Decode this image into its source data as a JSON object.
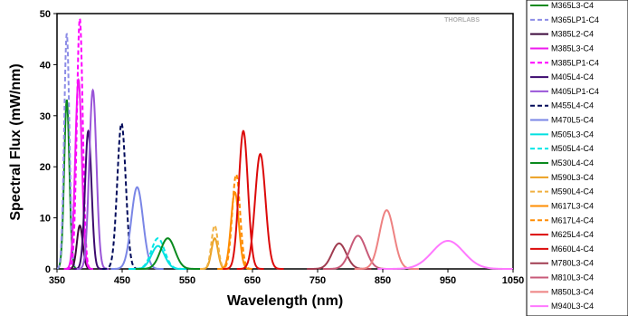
{
  "chart_data": {
    "type": "line",
    "title": "",
    "xlabel": "Wavelength (nm)",
    "ylabel": "Spectral Flux (mW/nm)",
    "xlim": [
      350,
      1050
    ],
    "ylim": [
      0,
      50
    ],
    "xticks": [
      350,
      450,
      550,
      650,
      750,
      850,
      950,
      1050
    ],
    "yticks": [
      0,
      10,
      20,
      30,
      40,
      50
    ],
    "grid": false,
    "legend_position": "right-outside",
    "watermark": "THORLABS",
    "series": [
      {
        "name": "M365L3-C4",
        "color": "#0a8a1e",
        "dash": "solid",
        "peak": 365,
        "height": 33,
        "width": 4
      },
      {
        "name": "M365LP1-C4",
        "color": "#8c8ce6",
        "dash": "dashed",
        "peak": 365,
        "height": 46,
        "width": 4
      },
      {
        "name": "M385L2-C4",
        "color": "#3c0a3c",
        "dash": "solid",
        "peak": 385,
        "height": 8.5,
        "width": 4.5
      },
      {
        "name": "M385L3-C4",
        "color": "#ee1aee",
        "dash": "solid",
        "peak": 383,
        "height": 37,
        "width": 5
      },
      {
        "name": "M385LP1-C4",
        "color": "#ff00ff",
        "dash": "dashed",
        "peak": 385,
        "height": 49,
        "width": 4.5
      },
      {
        "name": "M405L4-C4",
        "color": "#3c0a6e",
        "dash": "solid",
        "peak": 398,
        "height": 27,
        "width": 5
      },
      {
        "name": "M405LP1-C4",
        "color": "#9a55d8",
        "dash": "solid",
        "peak": 405,
        "height": 35,
        "width": 5.5
      },
      {
        "name": "M455L4-C4",
        "color": "#000a5a",
        "dash": "dashed",
        "peak": 449,
        "height": 28.5,
        "width": 6.5
      },
      {
        "name": "M470L5-C4",
        "color": "#7a86e6",
        "dash": "solid",
        "peak": 473,
        "height": 16,
        "width": 9
      },
      {
        "name": "M505L3-C4",
        "color": "#00e0e0",
        "dash": "solid",
        "peak": 505,
        "height": 4.5,
        "width": 10
      },
      {
        "name": "M505L4-C4",
        "color": "#00e6e6",
        "dash": "dashed",
        "peak": 505,
        "height": 6,
        "width": 10
      },
      {
        "name": "M530L4-C4",
        "color": "#0a8a1e",
        "dash": "solid",
        "peak": 520,
        "height": 6,
        "width": 11
      },
      {
        "name": "M590L3-C4",
        "color": "#eba020",
        "dash": "solid",
        "peak": 592,
        "height": 6,
        "width": 5
      },
      {
        "name": "M590L4-C4",
        "color": "#f0b040",
        "dash": "dashed",
        "peak": 592,
        "height": 8.5,
        "width": 5
      },
      {
        "name": "M617L3-C4",
        "color": "#ff8c00",
        "dash": "solid",
        "peak": 623,
        "height": 15,
        "width": 6
      },
      {
        "name": "M617L4-C4",
        "color": "#ff8c00",
        "dash": "dashed",
        "peak": 625,
        "height": 18.5,
        "width": 6
      },
      {
        "name": "M625L4-C4",
        "color": "#dc0a0a",
        "dash": "solid",
        "peak": 636,
        "height": 27,
        "width": 7
      },
      {
        "name": "M660L4-C4",
        "color": "#dc0a0a",
        "dash": "solid",
        "peak": 662,
        "height": 22.5,
        "width": 8
      },
      {
        "name": "M780L3-C4",
        "color": "#a03c50",
        "dash": "solid",
        "peak": 783,
        "height": 5,
        "width": 11
      },
      {
        "name": "M810L3-C4",
        "color": "#c85a78",
        "dash": "solid",
        "peak": 812,
        "height": 6.5,
        "width": 12
      },
      {
        "name": "M850L3-C4",
        "color": "#ee8282",
        "dash": "solid",
        "peak": 856,
        "height": 11.5,
        "width": 11
      },
      {
        "name": "M940L3-C4",
        "color": "#ff78ff",
        "dash": "solid",
        "peak": 950,
        "height": 5.5,
        "width": 24
      }
    ]
  }
}
